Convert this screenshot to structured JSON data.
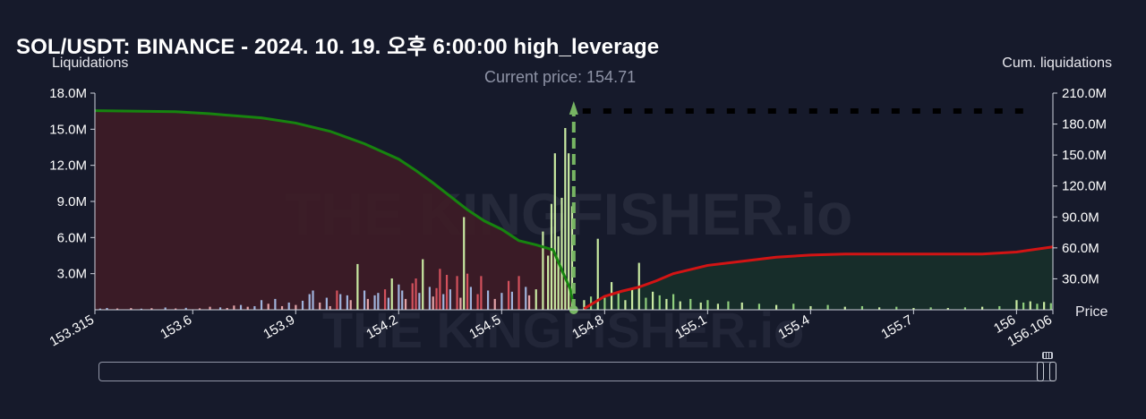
{
  "title": "SOL/USDT: BINANCE - 2024. 10. 19. 오후 6:00:00 high_leverage",
  "left_axis_title": "Liquidations",
  "right_axis_title": "Cum. liquidations",
  "x_axis_title": "Price",
  "current_price_label": "Current price: 154.71",
  "watermark": "THE KINGFISHER.io",
  "colors": {
    "background": "#161a2b",
    "cum_short_line": "#17840f",
    "cum_long_line": "#d21414",
    "short_fill": "#3e1c26",
    "long_fill": "#17302a",
    "bar_light_green": "#c9eaa2",
    "bar_green": "#8fce7c",
    "bar_red": "#d3515c",
    "bar_blue": "#9fb3dc",
    "bar_pink": "#e4a3a7",
    "current_price_marker": "#77b563"
  },
  "chart_data": {
    "type": "bar+line",
    "title": "SOL/USDT: BINANCE - 2024. 10. 19. 오후 6:00:00 high_leverage",
    "xlabel": "Price",
    "ylabel": "Liquidations",
    "y2label": "Cum. liquidations",
    "xlim": [
      153.315,
      156.106
    ],
    "ylim": [
      0,
      18000000
    ],
    "y2lim": [
      0,
      210000000
    ],
    "x_ticks": [
      "153.315",
      "153.6",
      "153.9",
      "154.2",
      "154.5",
      "154.8",
      "155.1",
      "155.4",
      "155.7",
      "156",
      "156.106"
    ],
    "y_ticks": [
      "3.0M",
      "6.0M",
      "9.0M",
      "12.0M",
      "15.0M",
      "18.0M"
    ],
    "y2_ticks": [
      "30.0M",
      "60.0M",
      "90.0M",
      "120.0M",
      "150.0M",
      "180.0M",
      "210.0M"
    ],
    "current_price": 154.71,
    "grid": false,
    "series": [
      {
        "name": "Cum. liquidations",
        "side": "below",
        "points": [
          [
            153.315,
            193000000
          ],
          [
            153.55,
            192000000
          ],
          [
            153.65,
            190000000
          ],
          [
            153.8,
            186000000
          ],
          [
            153.9,
            181000000
          ],
          [
            154.0,
            173000000
          ],
          [
            154.1,
            161000000
          ],
          [
            154.2,
            146000000
          ],
          [
            154.25,
            135000000
          ],
          [
            154.3,
            123000000
          ],
          [
            154.35,
            110000000
          ],
          [
            154.4,
            97000000
          ],
          [
            154.45,
            86000000
          ],
          [
            154.5,
            78000000
          ],
          [
            154.55,
            67000000
          ],
          [
            154.6,
            63000000
          ],
          [
            154.65,
            58000000
          ],
          [
            154.68,
            35000000
          ],
          [
            154.7,
            20000000
          ],
          [
            154.71,
            3000000
          ]
        ]
      },
      {
        "name": "Cum. liquidations",
        "side": "above",
        "points": [
          [
            154.74,
            1000000
          ],
          [
            154.8,
            13000000
          ],
          [
            154.85,
            18000000
          ],
          [
            154.9,
            22000000
          ],
          [
            154.95,
            28000000
          ],
          [
            155.0,
            35000000
          ],
          [
            155.05,
            39000000
          ],
          [
            155.1,
            43000000
          ],
          [
            155.2,
            47000000
          ],
          [
            155.3,
            51000000
          ],
          [
            155.4,
            53000000
          ],
          [
            155.5,
            54000000
          ],
          [
            155.7,
            54000000
          ],
          [
            155.9,
            54000000
          ],
          [
            156.0,
            56000000
          ],
          [
            156.106,
            61000000
          ]
        ]
      },
      {
        "name": "Liquidations",
        "type": "bar",
        "points": [
          [
            153.33,
            100000,
            "blue"
          ],
          [
            153.35,
            150000,
            "blue"
          ],
          [
            153.38,
            110000,
            "pink"
          ],
          [
            153.42,
            140000,
            "pink"
          ],
          [
            153.45,
            90000,
            "blue"
          ],
          [
            153.48,
            130000,
            "pink"
          ],
          [
            153.52,
            190000,
            "blue"
          ],
          [
            153.55,
            110000,
            "pink"
          ],
          [
            153.58,
            160000,
            "blue"
          ],
          [
            153.62,
            120000,
            "pink"
          ],
          [
            153.65,
            250000,
            "pink"
          ],
          [
            153.68,
            200000,
            "blue"
          ],
          [
            153.7,
            150000,
            "pink"
          ],
          [
            153.72,
            350000,
            "pink"
          ],
          [
            153.74,
            400000,
            "blue"
          ],
          [
            153.76,
            250000,
            "pink"
          ],
          [
            153.78,
            300000,
            "blue"
          ],
          [
            153.8,
            800000,
            "blue"
          ],
          [
            153.82,
            500000,
            "pink"
          ],
          [
            153.84,
            900000,
            "blue"
          ],
          [
            153.86,
            300000,
            "pink"
          ],
          [
            153.88,
            600000,
            "blue"
          ],
          [
            153.9,
            400000,
            "pink"
          ],
          [
            153.92,
            750000,
            "blue"
          ],
          [
            153.94,
            1300000,
            "blue"
          ],
          [
            153.95,
            1600000,
            "blue"
          ],
          [
            153.97,
            600000,
            "pink"
          ],
          [
            153.99,
            1000000,
            "blue"
          ],
          [
            154.0,
            300000,
            "pink"
          ],
          [
            154.02,
            1600000,
            "red"
          ],
          [
            154.03,
            1300000,
            "blue"
          ],
          [
            154.05,
            1200000,
            "blue"
          ],
          [
            154.06,
            800000,
            "pink"
          ],
          [
            154.08,
            3800000,
            "light_green"
          ],
          [
            154.1,
            1600000,
            "blue"
          ],
          [
            154.11,
            900000,
            "pink"
          ],
          [
            154.13,
            1200000,
            "blue"
          ],
          [
            154.14,
            1400000,
            "blue"
          ],
          [
            154.16,
            1700000,
            "red"
          ],
          [
            154.17,
            1000000,
            "blue"
          ],
          [
            154.18,
            2600000,
            "light_green"
          ],
          [
            154.2,
            2100000,
            "blue"
          ],
          [
            154.21,
            1600000,
            "blue"
          ],
          [
            154.22,
            900000,
            "pink"
          ],
          [
            154.24,
            2200000,
            "red"
          ],
          [
            154.25,
            2600000,
            "red"
          ],
          [
            154.26,
            1400000,
            "blue"
          ],
          [
            154.27,
            4200000,
            "light_green"
          ],
          [
            154.29,
            1900000,
            "blue"
          ],
          [
            154.3,
            1100000,
            "pink"
          ],
          [
            154.31,
            1800000,
            "red"
          ],
          [
            154.32,
            3400000,
            "red"
          ],
          [
            154.33,
            1300000,
            "blue"
          ],
          [
            154.34,
            2900000,
            "red"
          ],
          [
            154.35,
            1700000,
            "blue"
          ],
          [
            154.37,
            2800000,
            "red"
          ],
          [
            154.38,
            1000000,
            "pink"
          ],
          [
            154.39,
            7700000,
            "light_green"
          ],
          [
            154.4,
            3000000,
            "red"
          ],
          [
            154.41,
            1900000,
            "blue"
          ],
          [
            154.43,
            1300000,
            "red"
          ],
          [
            154.44,
            2800000,
            "red"
          ],
          [
            154.46,
            1600000,
            "blue"
          ],
          [
            154.48,
            900000,
            "pink"
          ],
          [
            154.5,
            1400000,
            "blue"
          ],
          [
            154.52,
            2400000,
            "red"
          ],
          [
            154.53,
            1500000,
            "blue"
          ],
          [
            154.55,
            2800000,
            "red"
          ],
          [
            154.57,
            1900000,
            "blue"
          ],
          [
            154.58,
            1200000,
            "pink"
          ],
          [
            154.6,
            1700000,
            "light_green"
          ],
          [
            154.62,
            6500000,
            "light_green"
          ],
          [
            154.635,
            4500000,
            "light_green"
          ],
          [
            154.645,
            8800000,
            "light_green"
          ],
          [
            154.655,
            13000000,
            "light_green"
          ],
          [
            154.665,
            6100000,
            "light_green"
          ],
          [
            154.675,
            9300000,
            "light_green"
          ],
          [
            154.685,
            15100000,
            "light_green"
          ],
          [
            154.695,
            13000000,
            "light_green"
          ],
          [
            154.705,
            8600000,
            "light_green"
          ],
          [
            154.74,
            800000,
            "light_green"
          ],
          [
            154.76,
            1100000,
            "green"
          ],
          [
            154.78,
            5900000,
            "light_green"
          ],
          [
            154.8,
            1000000,
            "green"
          ],
          [
            154.82,
            2300000,
            "light_green"
          ],
          [
            154.84,
            1400000,
            "green"
          ],
          [
            154.86,
            800000,
            "light_green"
          ],
          [
            154.88,
            1700000,
            "light_green"
          ],
          [
            154.9,
            3900000,
            "light_green"
          ],
          [
            154.92,
            1000000,
            "green"
          ],
          [
            154.94,
            1500000,
            "light_green"
          ],
          [
            154.96,
            1200000,
            "green"
          ],
          [
            154.98,
            900000,
            "light_green"
          ],
          [
            155.0,
            1300000,
            "green"
          ],
          [
            155.02,
            700000,
            "light_green"
          ],
          [
            155.05,
            900000,
            "green"
          ],
          [
            155.08,
            600000,
            "light_green"
          ],
          [
            155.1,
            800000,
            "green"
          ],
          [
            155.13,
            500000,
            "light_green"
          ],
          [
            155.16,
            700000,
            "green"
          ],
          [
            155.2,
            600000,
            "light_green"
          ],
          [
            155.25,
            500000,
            "green"
          ],
          [
            155.3,
            400000,
            "light_green"
          ],
          [
            155.35,
            500000,
            "green"
          ],
          [
            155.4,
            300000,
            "light_green"
          ],
          [
            155.45,
            400000,
            "green"
          ],
          [
            155.5,
            250000,
            "light_green"
          ],
          [
            155.55,
            300000,
            "green"
          ],
          [
            155.6,
            200000,
            "light_green"
          ],
          [
            155.65,
            250000,
            "green"
          ],
          [
            155.7,
            150000,
            "light_green"
          ],
          [
            155.75,
            200000,
            "green"
          ],
          [
            155.8,
            150000,
            "light_green"
          ],
          [
            155.85,
            200000,
            "green"
          ],
          [
            155.9,
            250000,
            "light_green"
          ],
          [
            155.95,
            300000,
            "green"
          ],
          [
            156.0,
            800000,
            "light_green"
          ],
          [
            156.02,
            600000,
            "green"
          ],
          [
            156.04,
            700000,
            "light_green"
          ],
          [
            156.06,
            500000,
            "green"
          ],
          [
            156.08,
            650000,
            "light_green"
          ],
          [
            156.1,
            550000,
            "green"
          ]
        ]
      }
    ]
  }
}
